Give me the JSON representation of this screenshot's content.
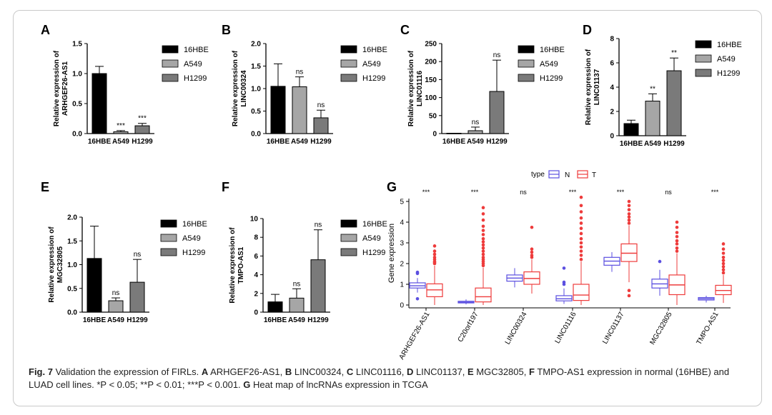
{
  "caption": {
    "fig_label": "Fig. 7",
    "parts": [
      {
        "t": " Validation the expression of FIRLs. ",
        "b": false
      },
      {
        "t": "A",
        "b": true
      },
      {
        "t": " ARHGEF26-AS1, ",
        "b": false
      },
      {
        "t": "B",
        "b": true
      },
      {
        "t": " LINC00324, ",
        "b": false
      },
      {
        "t": "C",
        "b": true
      },
      {
        "t": " LINC01116, ",
        "b": false
      },
      {
        "t": "D",
        "b": true
      },
      {
        "t": " LINC01137, ",
        "b": false
      },
      {
        "t": "E",
        "b": true
      },
      {
        "t": " MGC32805, ",
        "b": false
      },
      {
        "t": "F",
        "b": true
      },
      {
        "t": " TMPO-AS1 expression in normal (16HBE) and LUAD cell lines. *P < 0.05; **P < 0.01; ***P < 0.001. ",
        "b": false
      },
      {
        "t": "G",
        "b": true
      },
      {
        "t": " Heat map of lncRNAs expression in TCGA",
        "b": false
      }
    ]
  },
  "colors": {
    "c16HBE": "#000000",
    "cA549": "#a6a6a6",
    "cH1299": "#7a7a7a",
    "N": "#5b4fe0",
    "T": "#ee3b3b"
  },
  "chart_data": [
    {
      "panel": "A",
      "type": "bar",
      "ylabel": "Relative expression of ARHGEF26-AS1",
      "categories": [
        "16HBE",
        "A549",
        "H1299"
      ],
      "values": [
        1.0,
        0.03,
        0.13
      ],
      "errors": [
        0.12,
        0.02,
        0.04
      ],
      "significance": [
        "",
        "***",
        "***"
      ],
      "ylim": [
        0,
        1.5
      ],
      "yticks": [
        "0.0",
        "0.5",
        "1.0",
        "1.5"
      ],
      "legend": [
        "16HBE",
        "A549",
        "H1299"
      ]
    },
    {
      "panel": "B",
      "type": "bar",
      "ylabel": "Relative expression of LINC00324",
      "categories": [
        "16HBE",
        "A549",
        "H1299"
      ],
      "values": [
        1.05,
        1.04,
        0.35
      ],
      "errors": [
        0.5,
        0.22,
        0.17
      ],
      "significance": [
        "",
        "ns",
        "ns"
      ],
      "ylim": [
        0,
        2.0
      ],
      "yticks": [
        "0.0",
        "0.5",
        "1.0",
        "1.5",
        "2.0"
      ],
      "legend": [
        "16HBE",
        "A549",
        "H1299"
      ]
    },
    {
      "panel": "C",
      "type": "bar",
      "ylabel": "Relative expression of LINC01116",
      "categories": [
        "16HBE",
        "A549",
        "H1299"
      ],
      "values": [
        1,
        8,
        117
      ],
      "errors": [
        0,
        10,
        87
      ],
      "significance": [
        "",
        "ns",
        "ns"
      ],
      "ylim": [
        0,
        250
      ],
      "yticks": [
        "0",
        "50",
        "100",
        "150",
        "200",
        "250"
      ],
      "legend": [
        "16HBE",
        "A549",
        "H1299"
      ]
    },
    {
      "panel": "D",
      "type": "bar",
      "ylabel": "Relative expression of LINC01137",
      "categories": [
        "16HBE",
        "A549",
        "H1299"
      ],
      "values": [
        1.0,
        2.85,
        5.35
      ],
      "errors": [
        0.28,
        0.6,
        1.05
      ],
      "significance": [
        "",
        "**",
        "**"
      ],
      "ylim": [
        0,
        8
      ],
      "yticks": [
        "0",
        "2",
        "4",
        "6",
        "8"
      ],
      "legend": [
        "16HBE",
        "A549",
        "H1299"
      ]
    },
    {
      "panel": "E",
      "type": "bar",
      "ylabel": "Relative expression of MGC32805",
      "categories": [
        "16HBE",
        "A549",
        "H1299"
      ],
      "values": [
        1.13,
        0.24,
        0.63
      ],
      "errors": [
        0.68,
        0.06,
        0.48
      ],
      "significance": [
        "",
        "ns",
        "ns"
      ],
      "ylim": [
        0,
        2.0
      ],
      "yticks": [
        "0.0",
        "0.5",
        "1.0",
        "1.5",
        "2.0"
      ],
      "legend": [
        "16HBE",
        "A549",
        "H1299"
      ]
    },
    {
      "panel": "F",
      "type": "bar",
      "ylabel": "Relative expression of TMPO-AS1",
      "categories": [
        "16HBE",
        "A549",
        "H1299"
      ],
      "values": [
        1.1,
        1.5,
        5.6
      ],
      "errors": [
        0.8,
        1.0,
        3.2
      ],
      "significance": [
        "",
        "ns",
        "ns"
      ],
      "ylim": [
        0,
        10
      ],
      "yticks": [
        "0",
        "2",
        "4",
        "6",
        "8",
        "10"
      ],
      "legend": [
        "16HBE",
        "A549",
        "H1299"
      ]
    },
    {
      "panel": "G",
      "type": "box",
      "ylabel": "Gene expression",
      "legend_title": "type",
      "legend": [
        "N",
        "T"
      ],
      "ylim": [
        0,
        5
      ],
      "yticks": [
        "0",
        "1",
        "2",
        "3",
        "4",
        "5"
      ],
      "categories": [
        "ARHGEF26-AS1",
        "C20orf197",
        "LINC00324",
        "LINC01116",
        "LINC01137",
        "MGC32805",
        "TMPO-AS1"
      ],
      "significance": [
        "***",
        "***",
        "ns",
        "***",
        "***",
        "ns",
        "***"
      ],
      "N": [
        {
          "min": 0.6,
          "q1": 0.82,
          "med": 0.93,
          "q3": 1.07,
          "max": 1.3,
          "out": [
            1.58,
            1.52,
            0.3
          ]
        },
        {
          "min": 0.03,
          "q1": 0.1,
          "med": 0.13,
          "q3": 0.18,
          "max": 0.27,
          "out": []
        },
        {
          "min": 0.85,
          "q1": 1.15,
          "med": 1.3,
          "q3": 1.45,
          "max": 1.78,
          "out": []
        },
        {
          "min": 0.05,
          "q1": 0.2,
          "med": 0.3,
          "q3": 0.45,
          "max": 0.8,
          "out": [
            1.78,
            1.1,
            1.0
          ]
        },
        {
          "min": 1.6,
          "q1": 1.92,
          "med": 2.12,
          "q3": 2.3,
          "max": 2.55,
          "out": []
        },
        {
          "min": 0.45,
          "q1": 0.82,
          "med": 1.02,
          "q3": 1.25,
          "max": 1.7,
          "out": [
            2.1
          ]
        },
        {
          "min": 0.12,
          "q1": 0.24,
          "med": 0.3,
          "q3": 0.36,
          "max": 0.45,
          "out": []
        }
      ],
      "T": [
        {
          "min": 0.0,
          "q1": 0.4,
          "med": 0.73,
          "q3": 1.02,
          "max": 1.9,
          "out": [
            2.0,
            2.05,
            2.1,
            2.2,
            2.3,
            2.45,
            2.6,
            2.85
          ]
        },
        {
          "min": 0.0,
          "q1": 0.15,
          "med": 0.4,
          "q3": 0.82,
          "max": 1.8,
          "out": [
            1.9,
            2.0,
            2.1,
            2.2,
            2.3,
            2.45,
            2.6,
            2.75,
            2.9,
            3.05,
            3.2,
            3.4,
            3.6,
            3.8,
            4.1,
            4.4,
            4.7
          ]
        },
        {
          "min": 0.55,
          "q1": 1.0,
          "med": 1.28,
          "q3": 1.6,
          "max": 2.2,
          "out": [
            2.3,
            2.4,
            2.55,
            2.7,
            3.75
          ]
        },
        {
          "min": 0.0,
          "q1": 0.22,
          "med": 0.48,
          "q3": 1.0,
          "max": 2.1,
          "out": [
            2.2,
            2.4,
            2.6,
            2.8,
            3.0,
            3.2,
            3.45,
            3.7,
            3.95,
            4.2,
            4.5,
            4.8,
            5.2
          ]
        },
        {
          "min": 1.1,
          "q1": 2.1,
          "med": 2.5,
          "q3": 2.95,
          "max": 3.85,
          "out": [
            0.45,
            0.7,
            3.95,
            4.1,
            4.25,
            4.4,
            4.6,
            4.8,
            5.0
          ]
        },
        {
          "min": 0.0,
          "q1": 0.5,
          "med": 0.97,
          "q3": 1.45,
          "max": 2.5,
          "out": [
            2.6,
            2.75,
            2.95,
            3.1,
            3.3,
            3.5,
            3.75,
            4.0
          ]
        },
        {
          "min": 0.1,
          "q1": 0.5,
          "med": 0.7,
          "q3": 0.95,
          "max": 1.45,
          "out": [
            1.55,
            1.7,
            1.85,
            2.0,
            2.15,
            2.3,
            2.5,
            2.7,
            2.95
          ]
        }
      ]
    }
  ]
}
